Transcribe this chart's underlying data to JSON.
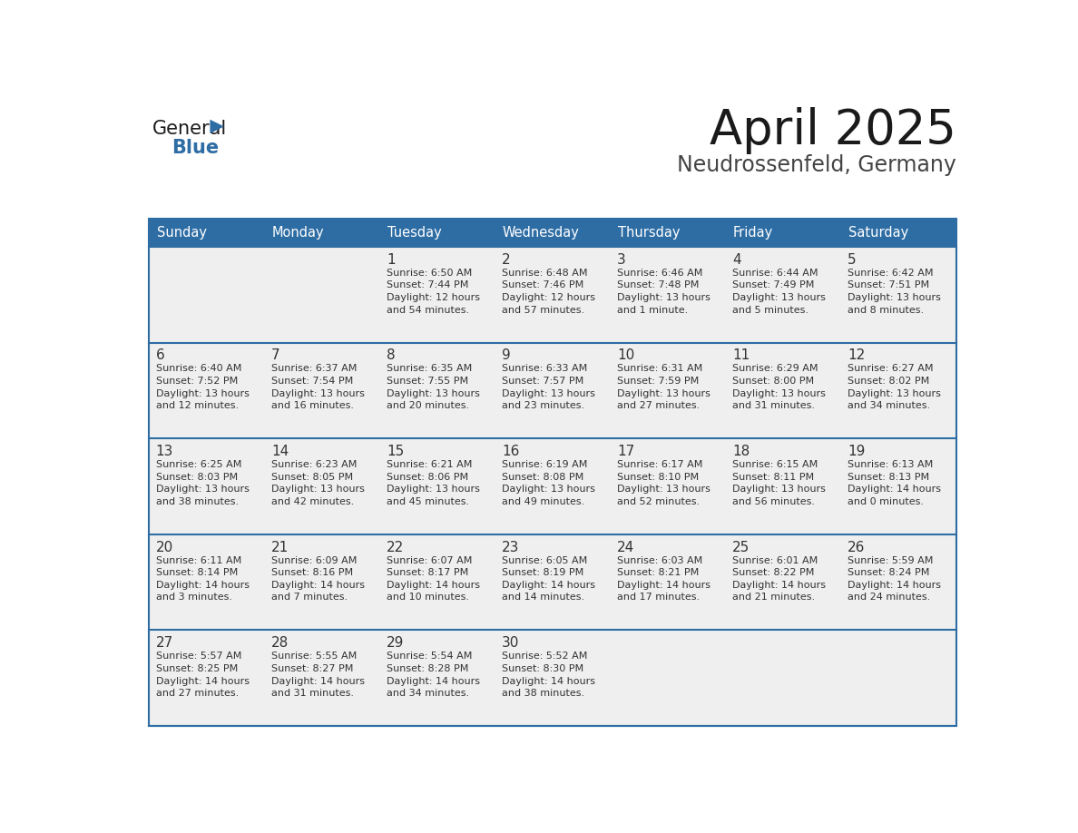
{
  "title": "April 2025",
  "subtitle": "Neudrossenfeld, Germany",
  "header_bg": "#2E6DA4",
  "header_text_color": "#FFFFFF",
  "day_names": [
    "Sunday",
    "Monday",
    "Tuesday",
    "Wednesday",
    "Thursday",
    "Friday",
    "Saturday"
  ],
  "cell_bg": "#EFEFEF",
  "cell_text_color": "#333333",
  "day_number_color": "#333333",
  "logo_general_color": "#1a1a1a",
  "logo_blue_color": "#2E6DA4",
  "divider_color": "#2E6DA4",
  "calendar": [
    [
      {
        "day": "",
        "info": ""
      },
      {
        "day": "",
        "info": ""
      },
      {
        "day": "1",
        "info": "Sunrise: 6:50 AM\nSunset: 7:44 PM\nDaylight: 12 hours\nand 54 minutes."
      },
      {
        "day": "2",
        "info": "Sunrise: 6:48 AM\nSunset: 7:46 PM\nDaylight: 12 hours\nand 57 minutes."
      },
      {
        "day": "3",
        "info": "Sunrise: 6:46 AM\nSunset: 7:48 PM\nDaylight: 13 hours\nand 1 minute."
      },
      {
        "day": "4",
        "info": "Sunrise: 6:44 AM\nSunset: 7:49 PM\nDaylight: 13 hours\nand 5 minutes."
      },
      {
        "day": "5",
        "info": "Sunrise: 6:42 AM\nSunset: 7:51 PM\nDaylight: 13 hours\nand 8 minutes."
      }
    ],
    [
      {
        "day": "6",
        "info": "Sunrise: 6:40 AM\nSunset: 7:52 PM\nDaylight: 13 hours\nand 12 minutes."
      },
      {
        "day": "7",
        "info": "Sunrise: 6:37 AM\nSunset: 7:54 PM\nDaylight: 13 hours\nand 16 minutes."
      },
      {
        "day": "8",
        "info": "Sunrise: 6:35 AM\nSunset: 7:55 PM\nDaylight: 13 hours\nand 20 minutes."
      },
      {
        "day": "9",
        "info": "Sunrise: 6:33 AM\nSunset: 7:57 PM\nDaylight: 13 hours\nand 23 minutes."
      },
      {
        "day": "10",
        "info": "Sunrise: 6:31 AM\nSunset: 7:59 PM\nDaylight: 13 hours\nand 27 minutes."
      },
      {
        "day": "11",
        "info": "Sunrise: 6:29 AM\nSunset: 8:00 PM\nDaylight: 13 hours\nand 31 minutes."
      },
      {
        "day": "12",
        "info": "Sunrise: 6:27 AM\nSunset: 8:02 PM\nDaylight: 13 hours\nand 34 minutes."
      }
    ],
    [
      {
        "day": "13",
        "info": "Sunrise: 6:25 AM\nSunset: 8:03 PM\nDaylight: 13 hours\nand 38 minutes."
      },
      {
        "day": "14",
        "info": "Sunrise: 6:23 AM\nSunset: 8:05 PM\nDaylight: 13 hours\nand 42 minutes."
      },
      {
        "day": "15",
        "info": "Sunrise: 6:21 AM\nSunset: 8:06 PM\nDaylight: 13 hours\nand 45 minutes."
      },
      {
        "day": "16",
        "info": "Sunrise: 6:19 AM\nSunset: 8:08 PM\nDaylight: 13 hours\nand 49 minutes."
      },
      {
        "day": "17",
        "info": "Sunrise: 6:17 AM\nSunset: 8:10 PM\nDaylight: 13 hours\nand 52 minutes."
      },
      {
        "day": "18",
        "info": "Sunrise: 6:15 AM\nSunset: 8:11 PM\nDaylight: 13 hours\nand 56 minutes."
      },
      {
        "day": "19",
        "info": "Sunrise: 6:13 AM\nSunset: 8:13 PM\nDaylight: 14 hours\nand 0 minutes."
      }
    ],
    [
      {
        "day": "20",
        "info": "Sunrise: 6:11 AM\nSunset: 8:14 PM\nDaylight: 14 hours\nand 3 minutes."
      },
      {
        "day": "21",
        "info": "Sunrise: 6:09 AM\nSunset: 8:16 PM\nDaylight: 14 hours\nand 7 minutes."
      },
      {
        "day": "22",
        "info": "Sunrise: 6:07 AM\nSunset: 8:17 PM\nDaylight: 14 hours\nand 10 minutes."
      },
      {
        "day": "23",
        "info": "Sunrise: 6:05 AM\nSunset: 8:19 PM\nDaylight: 14 hours\nand 14 minutes."
      },
      {
        "day": "24",
        "info": "Sunrise: 6:03 AM\nSunset: 8:21 PM\nDaylight: 14 hours\nand 17 minutes."
      },
      {
        "day": "25",
        "info": "Sunrise: 6:01 AM\nSunset: 8:22 PM\nDaylight: 14 hours\nand 21 minutes."
      },
      {
        "day": "26",
        "info": "Sunrise: 5:59 AM\nSunset: 8:24 PM\nDaylight: 14 hours\nand 24 minutes."
      }
    ],
    [
      {
        "day": "27",
        "info": "Sunrise: 5:57 AM\nSunset: 8:25 PM\nDaylight: 14 hours\nand 27 minutes."
      },
      {
        "day": "28",
        "info": "Sunrise: 5:55 AM\nSunset: 8:27 PM\nDaylight: 14 hours\nand 31 minutes."
      },
      {
        "day": "29",
        "info": "Sunrise: 5:54 AM\nSunset: 8:28 PM\nDaylight: 14 hours\nand 34 minutes."
      },
      {
        "day": "30",
        "info": "Sunrise: 5:52 AM\nSunset: 8:30 PM\nDaylight: 14 hours\nand 38 minutes."
      },
      {
        "day": "",
        "info": ""
      },
      {
        "day": "",
        "info": ""
      },
      {
        "day": "",
        "info": ""
      }
    ]
  ]
}
